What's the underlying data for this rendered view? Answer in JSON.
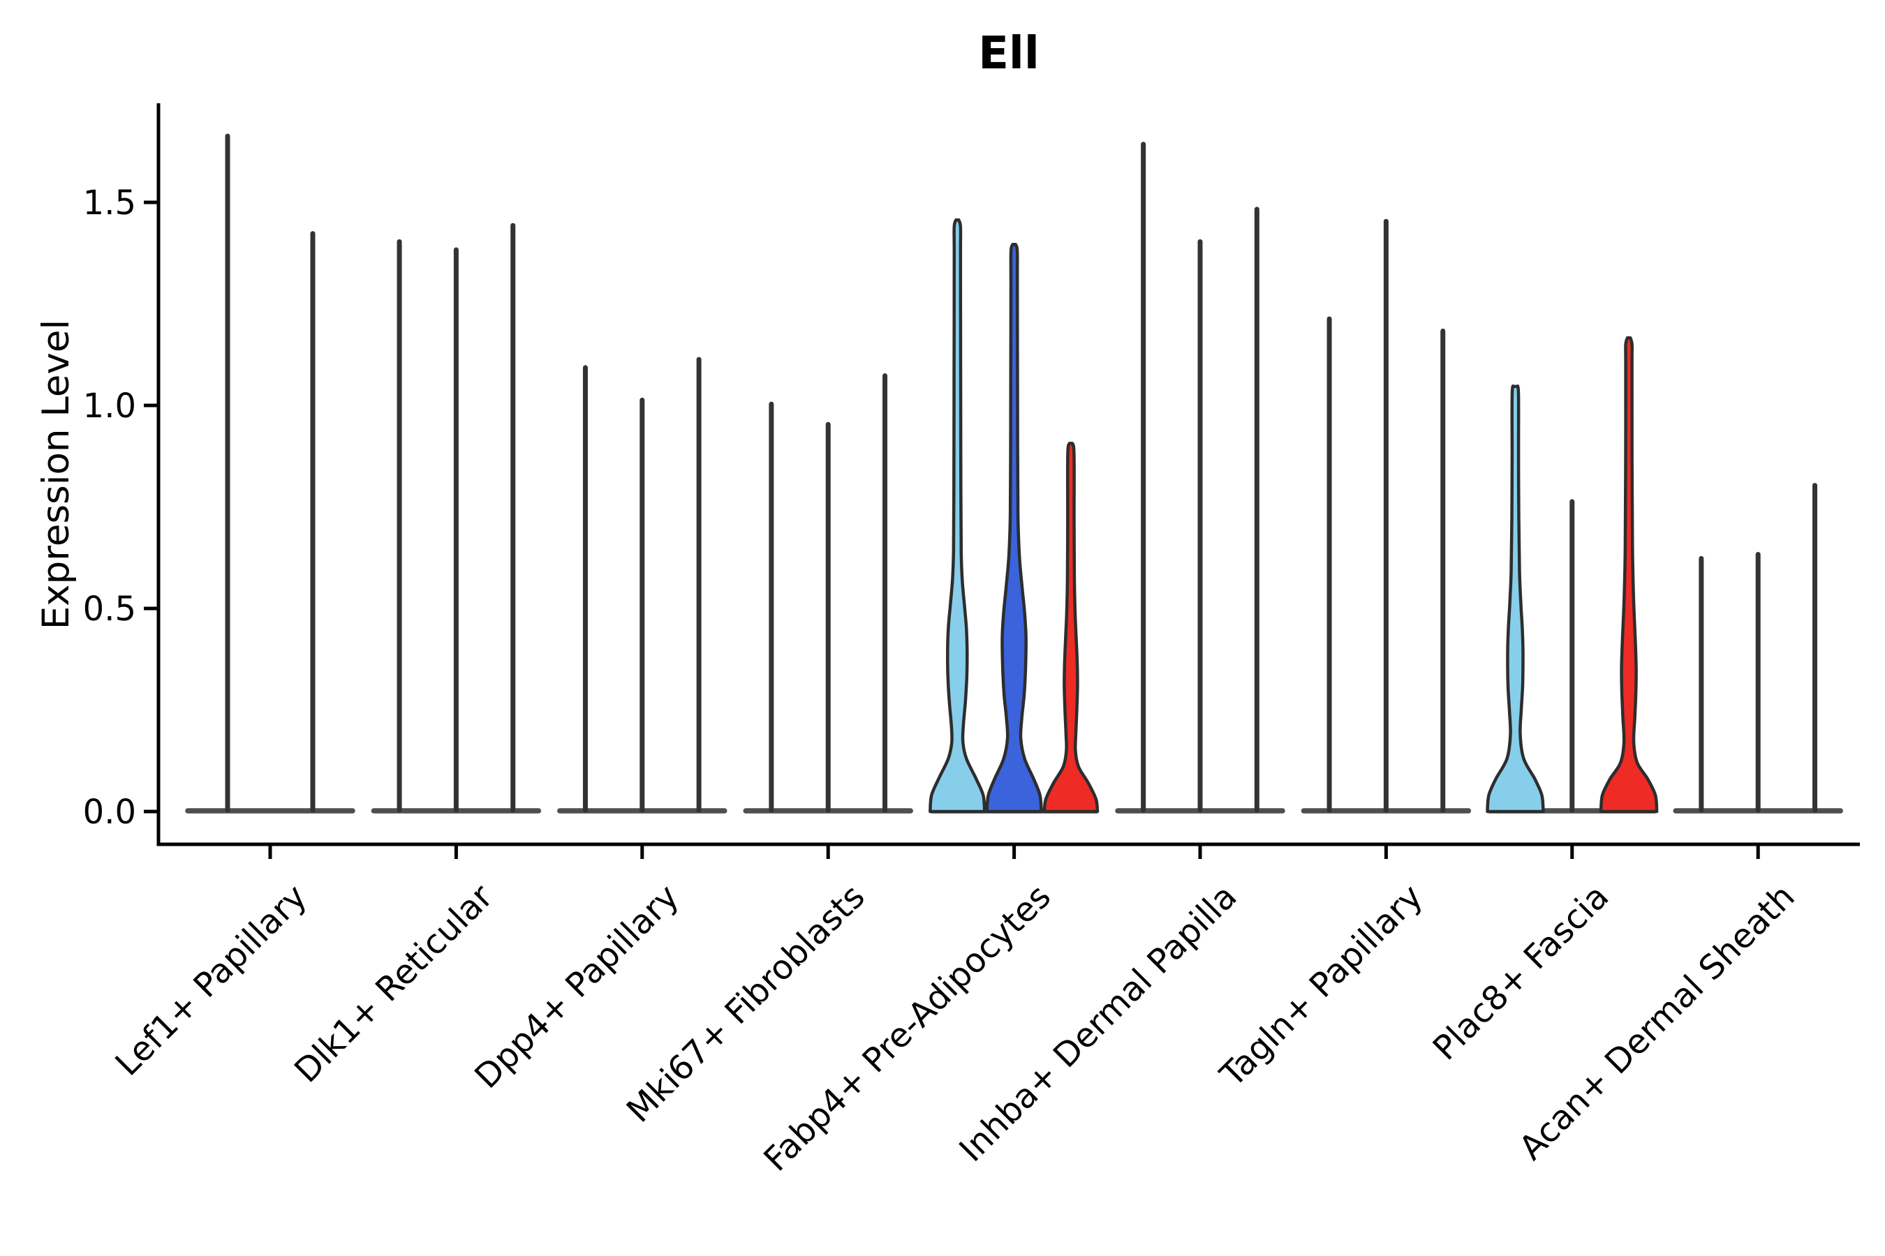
{
  "figure": {
    "background": "#ffffff",
    "palette": {
      "light_blue": "#87CEEB",
      "royal_blue": "#3B63DC",
      "red": "#EE2B24",
      "outline": "#2d2d2d",
      "spike": "#333333",
      "baseline": "#414141",
      "axis": "#000000"
    }
  },
  "chart_data": {
    "type": "violin",
    "title": "Ell",
    "ylabel": "Expression Level",
    "xlabel": "",
    "grid": false,
    "legend": "none",
    "ylim": [
      -0.08,
      1.74
    ],
    "yticks": [
      {
        "label": "0.0",
        "value": 0.0
      },
      {
        "label": "0.5",
        "value": 0.5
      },
      {
        "label": "1.0",
        "value": 1.0
      },
      {
        "label": "1.5",
        "value": 1.5
      }
    ],
    "groups": [
      {
        "label": "Lef1+ Papillary",
        "violins": [
          {
            "split": 1,
            "color": "#87CEEB",
            "max": 1.67,
            "shape": "collapsed"
          },
          {
            "split": 2,
            "color": "#3B63DC",
            "max": 1.43,
            "shape": "collapsed"
          }
        ]
      },
      {
        "label": "Dlk1+ Reticular",
        "violins": [
          {
            "split": 1,
            "color": "#87CEEB",
            "max": 1.41,
            "shape": "collapsed"
          },
          {
            "split": 2,
            "color": "#3B63DC",
            "max": 1.39,
            "shape": "collapsed"
          },
          {
            "split": 3,
            "color": "#EE2B24",
            "max": 1.45,
            "shape": "collapsed"
          }
        ]
      },
      {
        "label": "Dpp4+ Papillary",
        "violins": [
          {
            "split": 1,
            "color": "#87CEEB",
            "max": 1.1,
            "shape": "collapsed"
          },
          {
            "split": 2,
            "color": "#3B63DC",
            "max": 1.02,
            "shape": "collapsed"
          },
          {
            "split": 3,
            "color": "#EE2B24",
            "max": 1.12,
            "shape": "collapsed"
          }
        ]
      },
      {
        "label": "Mki67+ Fibroblasts",
        "violins": [
          {
            "split": 1,
            "color": "#87CEEB",
            "max": 1.01,
            "shape": "collapsed"
          },
          {
            "split": 2,
            "color": "#3B63DC",
            "max": 0.96,
            "shape": "collapsed"
          },
          {
            "split": 3,
            "color": "#EE2B24",
            "max": 1.08,
            "shape": "collapsed"
          }
        ]
      },
      {
        "label": "Fabp4+ Pre-Adipocytes",
        "violins": [
          {
            "split": 1,
            "color": "#87CEEB",
            "max": 1.46,
            "shape": "wide",
            "profile": [
              [
                0,
                39
              ],
              [
                0.04,
                37
              ],
              [
                0.08,
                27
              ],
              [
                0.13,
                13
              ],
              [
                0.17,
                8
              ],
              [
                0.21,
                8.5
              ],
              [
                0.27,
                11.5
              ],
              [
                0.33,
                13.5
              ],
              [
                0.39,
                14
              ],
              [
                0.45,
                13
              ],
              [
                0.51,
                10
              ],
              [
                0.57,
                7
              ],
              [
                0.64,
                5.5
              ],
              [
                0.8,
                5
              ],
              [
                1.0,
                4.8
              ],
              [
                1.2,
                4.6
              ],
              [
                1.38,
                4.5
              ],
              [
                1.44,
                4.5
              ]
            ]
          },
          {
            "split": 2,
            "color": "#3B63DC",
            "max": 1.4,
            "shape": "wide",
            "profile": [
              [
                0,
                39
              ],
              [
                0.04,
                37
              ],
              [
                0.08,
                28
              ],
              [
                0.13,
                15
              ],
              [
                0.18,
                9.5
              ],
              [
                0.23,
                11
              ],
              [
                0.29,
                14.5
              ],
              [
                0.36,
                16.5
              ],
              [
                0.43,
                17
              ],
              [
                0.49,
                15
              ],
              [
                0.56,
                11
              ],
              [
                0.63,
                7.5
              ],
              [
                0.73,
                5.5
              ],
              [
                0.9,
                5
              ],
              [
                1.1,
                4.8
              ],
              [
                1.3,
                4.6
              ],
              [
                1.38,
                4.5
              ]
            ]
          },
          {
            "split": 3,
            "color": "#EE2B24",
            "max": 0.91,
            "shape": "wide",
            "profile": [
              [
                0,
                38
              ],
              [
                0.03,
                36
              ],
              [
                0.07,
                25
              ],
              [
                0.11,
                11
              ],
              [
                0.15,
                6.5
              ],
              [
                0.19,
                7
              ],
              [
                0.25,
                8.5
              ],
              [
                0.31,
                9.5
              ],
              [
                0.37,
                9
              ],
              [
                0.43,
                7.5
              ],
              [
                0.49,
                6
              ],
              [
                0.57,
                5
              ],
              [
                0.72,
                4.6
              ],
              [
                0.88,
                4.5
              ]
            ]
          }
        ]
      },
      {
        "label": "Inhba+ Dermal Papilla",
        "violins": [
          {
            "split": 1,
            "color": "#87CEEB",
            "max": 1.65,
            "shape": "collapsed"
          },
          {
            "split": 2,
            "color": "#3B63DC",
            "max": 1.41,
            "shape": "collapsed"
          },
          {
            "split": 3,
            "color": "#EE2B24",
            "max": 1.49,
            "shape": "collapsed"
          }
        ]
      },
      {
        "label": "Tagln+ Papillary",
        "violins": [
          {
            "split": 1,
            "color": "#87CEEB",
            "max": 1.22,
            "shape": "collapsed"
          },
          {
            "split": 2,
            "color": "#3B63DC",
            "max": 1.46,
            "shape": "collapsed"
          },
          {
            "split": 3,
            "color": "#EE2B24",
            "max": 1.19,
            "shape": "collapsed"
          }
        ]
      },
      {
        "label": "Plac8+ Fascia",
        "violins": [
          {
            "split": 1,
            "color": "#87CEEB",
            "max": 1.05,
            "shape": "wide",
            "profile": [
              [
                0,
                40
              ],
              [
                0.04,
                38
              ],
              [
                0.08,
                28
              ],
              [
                0.13,
                12
              ],
              [
                0.19,
                7
              ],
              [
                0.25,
                8.5
              ],
              [
                0.31,
                10.5
              ],
              [
                0.39,
                11
              ],
              [
                0.45,
                10
              ],
              [
                0.51,
                8
              ],
              [
                0.59,
                6
              ],
              [
                0.72,
                5
              ],
              [
                0.88,
                4.6
              ],
              [
                1.03,
                4.5
              ]
            ]
          },
          {
            "split": 2,
            "color": "#3B63DC",
            "max": 0.77,
            "shape": "collapsed"
          },
          {
            "split": 3,
            "color": "#EE2B24",
            "max": 1.17,
            "shape": "wide",
            "profile": [
              [
                0,
                40
              ],
              [
                0.04,
                38
              ],
              [
                0.08,
                27
              ],
              [
                0.12,
                12
              ],
              [
                0.17,
                7
              ],
              [
                0.23,
                8.5
              ],
              [
                0.29,
                10
              ],
              [
                0.35,
                10.5
              ],
              [
                0.41,
                9.5
              ],
              [
                0.47,
                8
              ],
              [
                0.54,
                6.5
              ],
              [
                0.65,
                5.2
              ],
              [
                0.85,
                4.6
              ],
              [
                1.1,
                4.5
              ],
              [
                1.15,
                4.5
              ]
            ]
          }
        ]
      },
      {
        "label": "Acan+ Dermal Sheath",
        "violins": [
          {
            "split": 1,
            "color": "#87CEEB",
            "max": 0.63,
            "shape": "collapsed"
          },
          {
            "split": 2,
            "color": "#3B63DC",
            "max": 0.64,
            "shape": "collapsed"
          },
          {
            "split": 3,
            "color": "#EE2B24",
            "max": 0.81,
            "shape": "collapsed"
          }
        ]
      }
    ]
  }
}
